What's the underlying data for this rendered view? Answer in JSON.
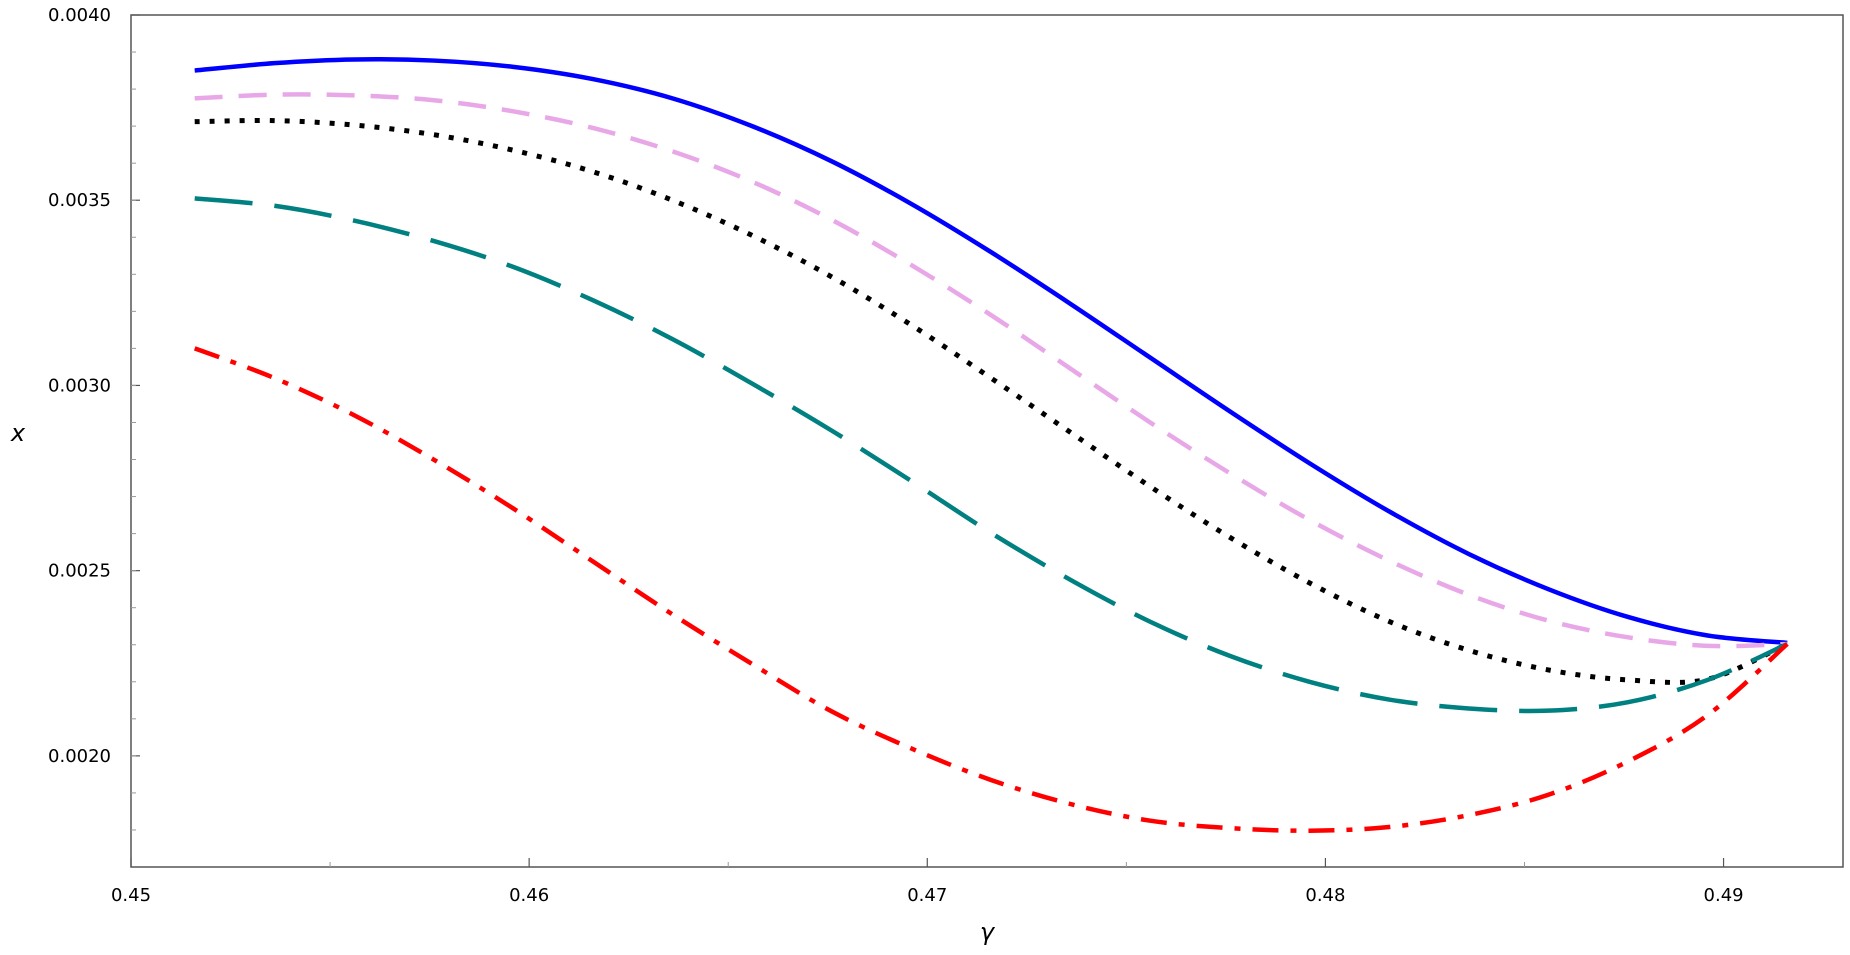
{
  "chart_data": {
    "type": "line",
    "xlabel": "γ",
    "ylabel": "x",
    "xlim": [
      0.45,
      0.493
    ],
    "ylim": [
      0.0017,
      0.004
    ],
    "x_ticks": [
      0.45,
      0.46,
      0.47,
      0.48,
      0.49
    ],
    "x_tick_labels": [
      "0.45",
      "0.46",
      "0.47",
      "0.48",
      "0.49"
    ],
    "y_ticks": [
      0.002,
      0.0025,
      0.003,
      0.0035,
      0.004
    ],
    "y_tick_labels": [
      "0.0020",
      "0.0025",
      "0.0030",
      "0.0035",
      "0.0040"
    ],
    "grid": false,
    "legend": "none",
    "series": [
      {
        "color": "#0000ff",
        "style": "solid",
        "x": [
          0.4516,
          0.4536,
          0.4556,
          0.4576,
          0.4596,
          0.4616,
          0.4636,
          0.4656,
          0.4676,
          0.4696,
          0.4716,
          0.4736,
          0.4756,
          0.4776,
          0.4796,
          0.4816,
          0.4836,
          0.4856,
          0.4876,
          0.4896,
          0.4916
        ],
        "y": [
          0.00385,
          0.00387,
          0.00388,
          0.003877,
          0.00386,
          0.003827,
          0.003775,
          0.0037,
          0.003605,
          0.00349,
          0.00336,
          0.00322,
          0.003075,
          0.00293,
          0.00279,
          0.00266,
          0.002545,
          0.00245,
          0.002375,
          0.002325,
          0.002305
        ]
      },
      {
        "color": "#e8a8e8",
        "style": "dashed",
        "x": [
          0.4516,
          0.4536,
          0.4556,
          0.4576,
          0.4596,
          0.4616,
          0.4636,
          0.4656,
          0.4676,
          0.4696,
          0.4716,
          0.4736,
          0.4756,
          0.4776,
          0.4796,
          0.4816,
          0.4836,
          0.4856,
          0.4876,
          0.4896,
          0.4916
        ],
        "y": [
          0.003775,
          0.003785,
          0.003783,
          0.00377,
          0.00374,
          0.003695,
          0.003632,
          0.00355,
          0.003447,
          0.003325,
          0.00319,
          0.003045,
          0.0029,
          0.002763,
          0.002637,
          0.002527,
          0.002435,
          0.002365,
          0.00232,
          0.002297,
          0.002302
        ]
      },
      {
        "color": "#000000",
        "style": "dotted",
        "x": [
          0.4516,
          0.4536,
          0.4556,
          0.4576,
          0.4596,
          0.4616,
          0.4636,
          0.4656,
          0.4676,
          0.4696,
          0.4716,
          0.4736,
          0.4756,
          0.4776,
          0.4796,
          0.4816,
          0.4836,
          0.4856,
          0.4876,
          0.4896,
          0.4916
        ],
        "y": [
          0.003712,
          0.003715,
          0.003703,
          0.003677,
          0.003635,
          0.003577,
          0.0035,
          0.003405,
          0.003293,
          0.003163,
          0.00302,
          0.002873,
          0.002727,
          0.00259,
          0.002467,
          0.002363,
          0.002285,
          0.002232,
          0.002205,
          0.002207,
          0.002302
        ]
      },
      {
        "color": "#008080",
        "style": "long-dashed",
        "x": [
          0.4516,
          0.4536,
          0.4556,
          0.4576,
          0.4596,
          0.4616,
          0.4636,
          0.4656,
          0.4676,
          0.4696,
          0.4716,
          0.4736,
          0.4756,
          0.4776,
          0.4796,
          0.4816,
          0.4836,
          0.4856,
          0.4876,
          0.4896,
          0.4916
        ],
        "y": [
          0.003505,
          0.003485,
          0.003445,
          0.00339,
          0.00332,
          0.00323,
          0.003125,
          0.003005,
          0.002878,
          0.002742,
          0.002602,
          0.002475,
          0.002362,
          0.00227,
          0.0022,
          0.002152,
          0.002128,
          0.002122,
          0.002145,
          0.002205,
          0.002302
        ]
      },
      {
        "color": "#ff0000",
        "style": "dash-dot",
        "x": [
          0.4516,
          0.4536,
          0.4556,
          0.4576,
          0.4596,
          0.4616,
          0.4636,
          0.4656,
          0.4676,
          0.4696,
          0.4716,
          0.4736,
          0.4756,
          0.4776,
          0.4796,
          0.4816,
          0.4836,
          0.4856,
          0.4876,
          0.4896,
          0.4916
        ],
        "y": [
          0.0031,
          0.00302,
          0.00292,
          0.0028,
          0.002668,
          0.002525,
          0.002382,
          0.002248,
          0.00212,
          0.00202,
          0.001935,
          0.00187,
          0.001825,
          0.001805,
          0.001798,
          0.001808,
          0.00184,
          0.001895,
          0.001985,
          0.00211,
          0.002302
        ]
      }
    ]
  }
}
